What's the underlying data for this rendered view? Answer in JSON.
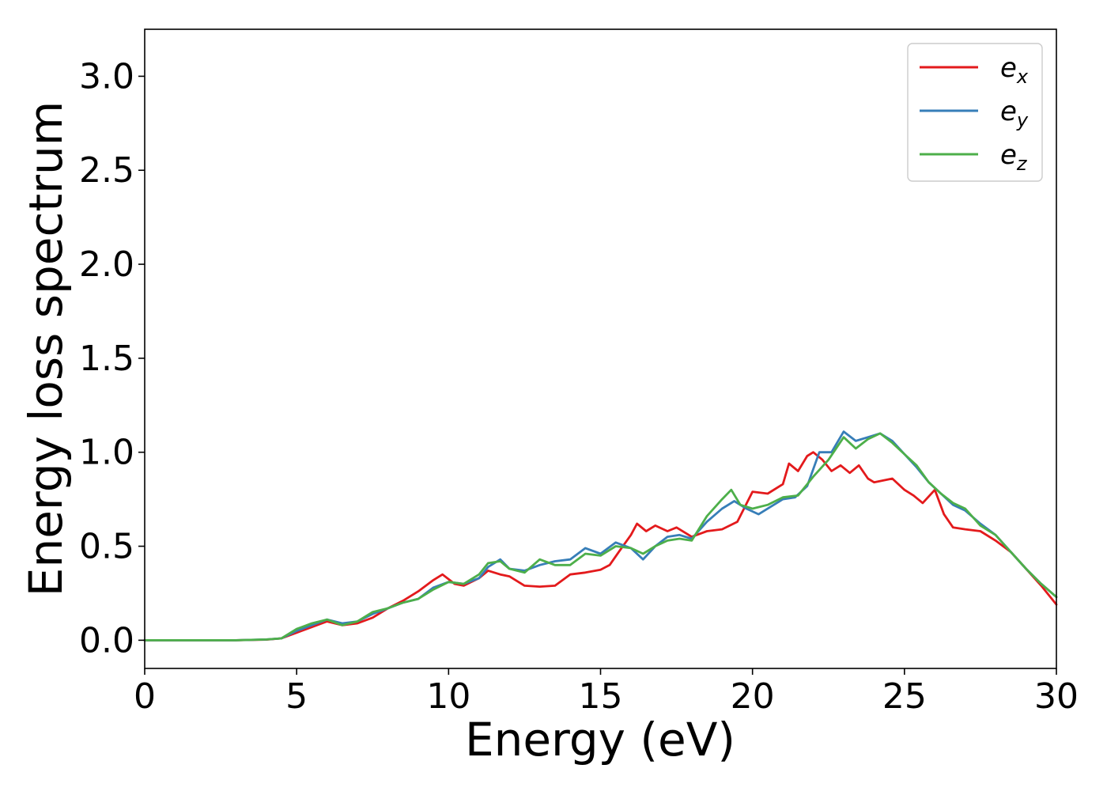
{
  "chart_data": {
    "type": "line",
    "title": "",
    "xlabel": "Energy (eV)",
    "ylabel": "Energy loss spectrum",
    "xlim": [
      0,
      30
    ],
    "ylim": [
      -0.15,
      3.25
    ],
    "xticks": [
      0,
      5,
      10,
      15,
      20,
      25,
      30
    ],
    "xtick_labels": [
      "0",
      "5",
      "10",
      "15",
      "20",
      "25",
      "30"
    ],
    "yticks": [
      0.0,
      0.5,
      1.0,
      1.5,
      2.0,
      2.5,
      3.0
    ],
    "ytick_labels": [
      "0.0",
      "0.5",
      "1.0",
      "1.5",
      "2.0",
      "2.5",
      "3.0"
    ],
    "grid": false,
    "legend_position": "top-right",
    "series": [
      {
        "name": "e_x",
        "base": "e",
        "sub": "x",
        "color": "#e31a1c",
        "x": [
          0,
          1,
          2,
          3,
          4,
          4.5,
          5,
          5.5,
          6,
          6.5,
          7,
          7.5,
          8,
          8.5,
          9,
          9.5,
          9.8,
          10.2,
          10.5,
          11,
          11.3,
          11.7,
          12,
          12.5,
          13,
          13.5,
          14,
          14.5,
          15,
          15.3,
          15.6,
          16,
          16.2,
          16.5,
          16.8,
          17.2,
          17.5,
          18,
          18.5,
          19,
          19.5,
          20,
          20.5,
          21,
          21.2,
          21.5,
          21.8,
          22,
          22.3,
          22.6,
          22.9,
          23.2,
          23.5,
          23.8,
          24,
          24.3,
          24.6,
          25,
          25.3,
          25.6,
          26,
          26.3,
          26.6,
          27,
          27.5,
          28,
          28.5,
          29,
          29.5,
          30
        ],
        "y": [
          0.0,
          0.0,
          0.0,
          0.0,
          0.003,
          0.01,
          0.04,
          0.07,
          0.1,
          0.08,
          0.09,
          0.12,
          0.17,
          0.21,
          0.26,
          0.32,
          0.35,
          0.3,
          0.29,
          0.33,
          0.37,
          0.35,
          0.34,
          0.29,
          0.285,
          0.29,
          0.35,
          0.36,
          0.375,
          0.4,
          0.47,
          0.56,
          0.62,
          0.58,
          0.61,
          0.58,
          0.6,
          0.55,
          0.58,
          0.59,
          0.63,
          0.79,
          0.78,
          0.83,
          0.94,
          0.9,
          0.98,
          1.0,
          0.96,
          0.9,
          0.93,
          0.89,
          0.93,
          0.86,
          0.84,
          0.85,
          0.86,
          0.8,
          0.77,
          0.73,
          0.8,
          0.67,
          0.6,
          0.59,
          0.58,
          0.53,
          0.47,
          0.38,
          0.29,
          0.19
        ]
      },
      {
        "name": "e_y",
        "base": "e",
        "sub": "y",
        "color": "#377eb8",
        "x": [
          0,
          1,
          2,
          3,
          4,
          4.5,
          5,
          5.5,
          6,
          6.5,
          7,
          7.5,
          8,
          8.5,
          9,
          9.5,
          10,
          10.5,
          11,
          11.3,
          11.7,
          12,
          12.5,
          13,
          13.5,
          14,
          14.5,
          15,
          15.5,
          16,
          16.4,
          16.8,
          17.2,
          17.6,
          18,
          18.5,
          19,
          19.4,
          19.8,
          20.2,
          20.6,
          21,
          21.4,
          21.8,
          22.2,
          22.6,
          23,
          23.4,
          23.8,
          24.2,
          24.6,
          25,
          25.4,
          25.8,
          26.2,
          26.6,
          27,
          27.5,
          28,
          28.5,
          29,
          29.5,
          30
        ],
        "y": [
          0.0,
          0.0,
          0.0,
          0.0,
          0.004,
          0.01,
          0.05,
          0.08,
          0.11,
          0.09,
          0.1,
          0.14,
          0.17,
          0.2,
          0.22,
          0.28,
          0.31,
          0.3,
          0.33,
          0.39,
          0.43,
          0.38,
          0.37,
          0.4,
          0.42,
          0.43,
          0.49,
          0.46,
          0.52,
          0.49,
          0.43,
          0.5,
          0.55,
          0.56,
          0.54,
          0.63,
          0.7,
          0.74,
          0.7,
          0.67,
          0.71,
          0.75,
          0.76,
          0.82,
          1.0,
          1.0,
          1.11,
          1.06,
          1.08,
          1.1,
          1.06,
          0.99,
          0.92,
          0.84,
          0.78,
          0.72,
          0.69,
          0.62,
          0.56,
          0.47,
          0.38,
          0.3,
          0.23
        ]
      },
      {
        "name": "e_z",
        "base": "e",
        "sub": "z",
        "color": "#4daf4a",
        "x": [
          0,
          1,
          2,
          3,
          4,
          4.5,
          5,
          5.5,
          6,
          6.5,
          7,
          7.5,
          8,
          8.5,
          9,
          9.5,
          10,
          10.5,
          11,
          11.3,
          11.7,
          12,
          12.5,
          13,
          13.5,
          14,
          14.5,
          15,
          15.5,
          16,
          16.4,
          16.8,
          17.2,
          17.6,
          18,
          18.5,
          19,
          19.3,
          19.6,
          20,
          20.5,
          21,
          21.5,
          22,
          22.5,
          23,
          23.4,
          23.8,
          24.2,
          24.6,
          25,
          25.4,
          25.8,
          26.2,
          26.6,
          27,
          27.5,
          28,
          28.5,
          29,
          29.5,
          30
        ],
        "y": [
          0.0,
          0.0,
          0.0,
          0.0,
          0.004,
          0.01,
          0.06,
          0.09,
          0.11,
          0.08,
          0.1,
          0.15,
          0.17,
          0.2,
          0.22,
          0.27,
          0.31,
          0.3,
          0.35,
          0.41,
          0.42,
          0.38,
          0.36,
          0.43,
          0.4,
          0.4,
          0.46,
          0.45,
          0.5,
          0.49,
          0.46,
          0.5,
          0.53,
          0.54,
          0.53,
          0.66,
          0.75,
          0.8,
          0.72,
          0.7,
          0.72,
          0.76,
          0.77,
          0.87,
          0.96,
          1.08,
          1.02,
          1.07,
          1.1,
          1.05,
          0.99,
          0.93,
          0.84,
          0.78,
          0.73,
          0.7,
          0.61,
          0.56,
          0.47,
          0.38,
          0.3,
          0.23
        ]
      }
    ]
  }
}
